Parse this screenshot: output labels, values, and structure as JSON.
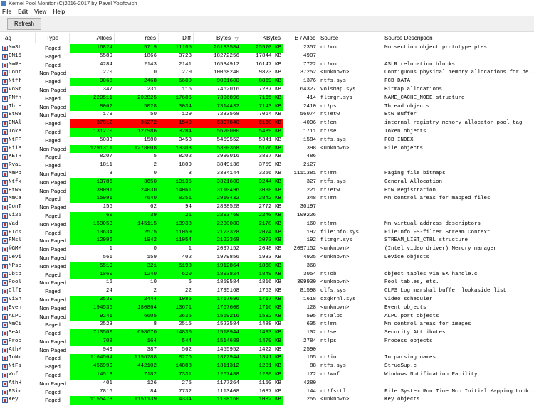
{
  "window": {
    "title": "Kernel Pool Monitor (C)2016-2017 by Pavel Yosifovich"
  },
  "menu": [
    "File",
    "Edit",
    "View",
    "Help"
  ],
  "toolbar": {
    "refresh_label": "Refresh"
  },
  "columns": [
    "Tag",
    "Type",
    "Allocs",
    "Frees",
    "Diff",
    "Bytes",
    "KBytes",
    "B / Alloc",
    "Source",
    "Source Description"
  ],
  "colors": {
    "increase": "#00ff00",
    "decrease": "#ff0000"
  },
  "rows": [
    {
      "tag": "MmSt",
      "type": "Paged",
      "allocs": "16824",
      "frees": "5719",
      "diff": "11105",
      "bytes": "26183584",
      "kbytes": "25570 KB",
      "balloc": "2357",
      "source": "nt!mm",
      "desc": "Mm section object prototype ptes",
      "hl": "g"
    },
    {
      "tag": "CM16",
      "type": "Paged",
      "allocs": "5589",
      "frees": "1866",
      "diff": "3723",
      "bytes": "18272256",
      "kbytes": "17844 KB",
      "balloc": "4907",
      "source": "",
      "desc": "",
      "hl": ""
    },
    {
      "tag": "MmRe",
      "type": "Paged",
      "allocs": "4284",
      "frees": "2143",
      "diff": "2141",
      "bytes": "16534912",
      "kbytes": "16147 KB",
      "balloc": "7722",
      "source": "nt!mm",
      "desc": "ASLR relocation blocks",
      "hl": ""
    },
    {
      "tag": "Cont",
      "type": "Non Paged",
      "allocs": "270",
      "frees": "0",
      "diff": "270",
      "bytes": "10058240",
      "kbytes": "9823 KB",
      "balloc": "37252",
      "source": "<unknown>",
      "desc": "Contiguous physical memory allocations for de...",
      "hl": ""
    },
    {
      "tag": "Ntff",
      "type": "Paged",
      "allocs": "9068",
      "frees": "2468",
      "diff": "6600",
      "bytes": "9081600",
      "kbytes": "8869 KB",
      "balloc": "1376",
      "source": "ntfs.sys",
      "desc": "FCB_DATA",
      "hl": "g"
    },
    {
      "tag": "VoSm",
      "type": "Non Paged",
      "allocs": "347",
      "frees": "231",
      "diff": "116",
      "bytes": "7462016",
      "kbytes": "7287 KB",
      "balloc": "64327",
      "source": "volsmap.sys",
      "desc": "Bitmap allocations",
      "hl": ""
    },
    {
      "tag": "FMfn",
      "type": "Paged",
      "allocs": "220511",
      "frees": "202825",
      "diff": "17686",
      "bytes": "7336896",
      "kbytes": "7165 KB",
      "balloc": "414",
      "source": "fltmgr.sys",
      "desc": "NAME_CACHE_NODE structure",
      "hl": "g"
    },
    {
      "tag": "Thre",
      "type": "Non Paged",
      "allocs": "8062",
      "frees": "5028",
      "diff": "3034",
      "bytes": "7314432",
      "kbytes": "7143 KB",
      "balloc": "2410",
      "source": "nt!ps",
      "desc": "Thread objects",
      "hl": "g"
    },
    {
      "tag": "EtwB",
      "type": "Non Paged",
      "allocs": "179",
      "frees": "50",
      "diff": "129",
      "bytes": "7233568",
      "kbytes": "7064 KB",
      "balloc": "56074",
      "source": "nt!etw",
      "desc": "Etw Buffer",
      "hl": ""
    },
    {
      "tag": "CMAl",
      "type": "Paged",
      "allocs": "37812",
      "frees": "36272",
      "diff": "1540",
      "bytes": "6307840",
      "kbytes": "6160 KB",
      "balloc": "4096",
      "source": "nt!cm",
      "desc": "internal registry memory allocator pool tag",
      "hl": "r"
    },
    {
      "tag": "Toke",
      "type": "Paged",
      "allocs": "131270",
      "frees": "127986",
      "diff": "3284",
      "bytes": "5620000",
      "kbytes": "5489 KB",
      "balloc": "1711",
      "source": "nt!se",
      "desc": "Token objects",
      "hl": "g"
    },
    {
      "tag": "NtFF",
      "type": "Paged",
      "allocs": "5033",
      "frees": "1580",
      "diff": "3453",
      "bytes": "5469552",
      "kbytes": "5341 KB",
      "balloc": "1584",
      "source": "ntfs.sys",
      "desc": "FCB_INDEX",
      "hl": ""
    },
    {
      "tag": "File",
      "type": "Non Paged",
      "allocs": "1291311",
      "frees": "1278008",
      "diff": "13303",
      "bytes": "5300368",
      "kbytes": "5176 KB",
      "balloc": "398",
      "source": "<unknown>",
      "desc": "File objects",
      "hl": "g"
    },
    {
      "tag": "KETR",
      "type": "Paged",
      "allocs": "8207",
      "frees": "5",
      "diff": "8202",
      "bytes": "3990016",
      "kbytes": "3897 KB",
      "balloc": "486",
      "source": "",
      "desc": "",
      "hl": ""
    },
    {
      "tag": "RvaL",
      "type": "Paged",
      "allocs": "1811",
      "frees": "2",
      "diff": "1809",
      "bytes": "3849136",
      "kbytes": "3759 KB",
      "balloc": "2127",
      "source": "",
      "desc": "",
      "hl": ""
    },
    {
      "tag": "MmPb",
      "type": "Non Paged",
      "allocs": "3",
      "frees": "0",
      "diff": "3",
      "bytes": "3334144",
      "kbytes": "3256 KB",
      "balloc": "1111381",
      "source": "nt!mm",
      "desc": "Paging file bitmaps",
      "hl": ""
    },
    {
      "tag": "Ntfx",
      "type": "Non Paged",
      "allocs": "13785",
      "frees": "3650",
      "diff": "10135",
      "bytes": "3321600",
      "kbytes": "3244 KB",
      "balloc": "327",
      "source": "ntfs.sys",
      "desc": "General Allocation",
      "hl": "g"
    },
    {
      "tag": "EtwR",
      "type": "Non Paged",
      "allocs": "38091",
      "frees": "24030",
      "diff": "14061",
      "bytes": "3110496",
      "kbytes": "3038 KB",
      "balloc": "221",
      "source": "nt!etw",
      "desc": "Etw Registration",
      "hl": "g"
    },
    {
      "tag": "MmCa",
      "type": "Paged",
      "allocs": "15991",
      "frees": "7640",
      "diff": "8351",
      "bytes": "2910432",
      "kbytes": "2842 KB",
      "balloc": "348",
      "source": "nt!mm",
      "desc": "Mm control areas for mapped files",
      "hl": "g"
    },
    {
      "tag": "ConT",
      "type": "Non Paged",
      "allocs": "156",
      "frees": "62",
      "diff": "94",
      "bytes": "2838528",
      "kbytes": "2772 KB",
      "balloc": "30197",
      "source": "",
      "desc": "",
      "hl": ""
    },
    {
      "tag": "Vi25",
      "type": "Paged",
      "allocs": "60",
      "frees": "39",
      "diff": "21",
      "bytes": "2293760",
      "kbytes": "2240 KB",
      "balloc": "109226",
      "source": "",
      "desc": "",
      "hl": "g"
    },
    {
      "tag": "Vad",
      "type": "Non Paged",
      "allocs": "159053",
      "frees": "145115",
      "diff": "13938",
      "bytes": "2230080",
      "kbytes": "2178 KB",
      "balloc": "160",
      "source": "nt!mm",
      "desc": "Mm virtual address descriptors",
      "hl": "g"
    },
    {
      "tag": "FIcs",
      "type": "Paged",
      "allocs": "13634",
      "frees": "2575",
      "diff": "11059",
      "bytes": "2123328",
      "kbytes": "2074 KB",
      "balloc": "192",
      "source": "fileinfo.sys",
      "desc": "FileInfo FS-filter Stream Context",
      "hl": "g"
    },
    {
      "tag": "FMsl",
      "type": "Non Paged",
      "allocs": "12996",
      "frees": "1942",
      "diff": "11054",
      "bytes": "2122368",
      "kbytes": "2073 KB",
      "balloc": "192",
      "source": "fltmgr.sys",
      "desc": "STREAM_LIST_CTRL structure",
      "hl": "g"
    },
    {
      "tag": "@GMM",
      "type": "Non Paged",
      "allocs": "1",
      "frees": "0",
      "diff": "1",
      "bytes": "2097152",
      "kbytes": "2048 KB",
      "balloc": "2097152",
      "source": "<unknown>",
      "desc": "(Intel video driver) Memory manager",
      "hl": ""
    },
    {
      "tag": "Devi",
      "type": "Non Paged",
      "allocs": "561",
      "frees": "159",
      "diff": "402",
      "bytes": "1979856",
      "kbytes": "1933 KB",
      "balloc": "4925",
      "source": "<unknown>",
      "desc": "Device objects",
      "hl": ""
    },
    {
      "tag": "MPsc",
      "type": "Non Paged",
      "allocs": "5519",
      "frees": "321",
      "diff": "5198",
      "bytes": "1912864",
      "kbytes": "1868 KB",
      "balloc": "368",
      "source": "",
      "desc": "",
      "hl": "g"
    },
    {
      "tag": "Obtb",
      "type": "Paged",
      "allocs": "1860",
      "frees": "1240",
      "diff": "620",
      "bytes": "1893824",
      "kbytes": "1849 KB",
      "balloc": "3054",
      "source": "nt!ob",
      "desc": "object tables via EX handle.c",
      "hl": "g"
    },
    {
      "tag": "Pool",
      "type": "Non Paged",
      "allocs": "16",
      "frees": "10",
      "diff": "6",
      "bytes": "1859584",
      "kbytes": "1816 KB",
      "balloc": "309930",
      "source": "<unknown>",
      "desc": "Pool tables, etc.",
      "hl": ""
    },
    {
      "tag": "ClfI",
      "type": "Paged",
      "allocs": "24",
      "frees": "2",
      "diff": "22",
      "bytes": "1795168",
      "kbytes": "1753 KB",
      "balloc": "81598",
      "source": "clfs.sys",
      "desc": "CLFS Log marshal buffer lookaside list",
      "hl": ""
    },
    {
      "tag": "ViSh",
      "type": "Non Paged",
      "allocs": "3530",
      "frees": "2444",
      "diff": "1086",
      "bytes": "1757696",
      "kbytes": "1717 KB",
      "balloc": "1618",
      "source": "dxgkrnl.sys",
      "desc": "Video scheduler",
      "hl": "g"
    },
    {
      "tag": "Even",
      "type": "Non Paged",
      "allocs": "194535",
      "frees": "180864",
      "diff": "13671",
      "bytes": "1757600",
      "kbytes": "1716 KB",
      "balloc": "128",
      "source": "<unknown>",
      "desc": "Event objects",
      "hl": "g"
    },
    {
      "tag": "ALPC",
      "type": "Non Paged",
      "allocs": "9241",
      "frees": "6605",
      "diff": "2636",
      "bytes": "1569216",
      "kbytes": "1532 KB",
      "balloc": "595",
      "source": "nt!alpc",
      "desc": "ALPC port objects",
      "hl": "g"
    },
    {
      "tag": "MmCi",
      "type": "Paged",
      "allocs": "2523",
      "frees": "8",
      "diff": "2515",
      "bytes": "1523584",
      "kbytes": "1488 KB",
      "balloc": "605",
      "source": "nt!mm",
      "desc": "Mm control areas for images",
      "hl": ""
    },
    {
      "tag": "SeAt",
      "type": "Paged",
      "allocs": "713500",
      "frees": "698670",
      "diff": "14830",
      "bytes": "1518944",
      "kbytes": "1483 KB",
      "balloc": "102",
      "source": "nt!se",
      "desc": "Security Attributes",
      "hl": "g"
    },
    {
      "tag": "Proc",
      "type": "Non Paged",
      "allocs": "708",
      "frees": "164",
      "diff": "544",
      "bytes": "1514688",
      "kbytes": "1479 KB",
      "balloc": "2784",
      "source": "nt!ps",
      "desc": "Process objects",
      "hl": "g"
    },
    {
      "tag": "AthM",
      "type": "Non Paged",
      "allocs": "949",
      "frees": "387",
      "diff": "562",
      "bytes": "1455952",
      "kbytes": "1422 KB",
      "balloc": "2590",
      "source": "",
      "desc": "",
      "hl": ""
    },
    {
      "tag": "IoNm",
      "type": "Paged",
      "allocs": "1164564",
      "frees": "1156288",
      "diff": "8276",
      "bytes": "1372944",
      "kbytes": "1341 KB",
      "balloc": "165",
      "source": "nt!io",
      "desc": "Io parsing names",
      "hl": "g"
    },
    {
      "tag": "NtFs",
      "type": "Paged",
      "allocs": "456990",
      "frees": "442102",
      "diff": "14888",
      "bytes": "1311312",
      "kbytes": "1281 KB",
      "balloc": "88",
      "source": "ntfs.sys",
      "desc": "StrucSup.c",
      "hl": "g"
    },
    {
      "tag": "Wnf",
      "type": "Paged",
      "allocs": "14513",
      "frees": "7182",
      "diff": "7331",
      "bytes": "1267488",
      "kbytes": "1238 KB",
      "balloc": "172",
      "source": "nt!wnf",
      "desc": "Windows Notification Facility",
      "hl": "g"
    },
    {
      "tag": "AthH",
      "type": "Non Paged",
      "allocs": "401",
      "frees": "126",
      "diff": "275",
      "bytes": "1177264",
      "kbytes": "1150 KB",
      "balloc": "4280",
      "source": "",
      "desc": "",
      "hl": ""
    },
    {
      "tag": "FSim",
      "type": "Paged",
      "allocs": "7816",
      "frees": "84",
      "diff": "7732",
      "bytes": "1113408",
      "kbytes": "1087 KB",
      "balloc": "144",
      "source": "nt!fsrtl",
      "desc": "File System Run Time Mcb Initial Mapping Look...",
      "hl": ""
    },
    {
      "tag": "Key",
      "type": "Paged",
      "allocs": "1155473",
      "frees": "1151139",
      "diff": "4334",
      "bytes": "1108160",
      "kbytes": "1082 KB",
      "balloc": "255",
      "source": "<unknown>",
      "desc": "Key objects",
      "hl": "g"
    }
  ]
}
